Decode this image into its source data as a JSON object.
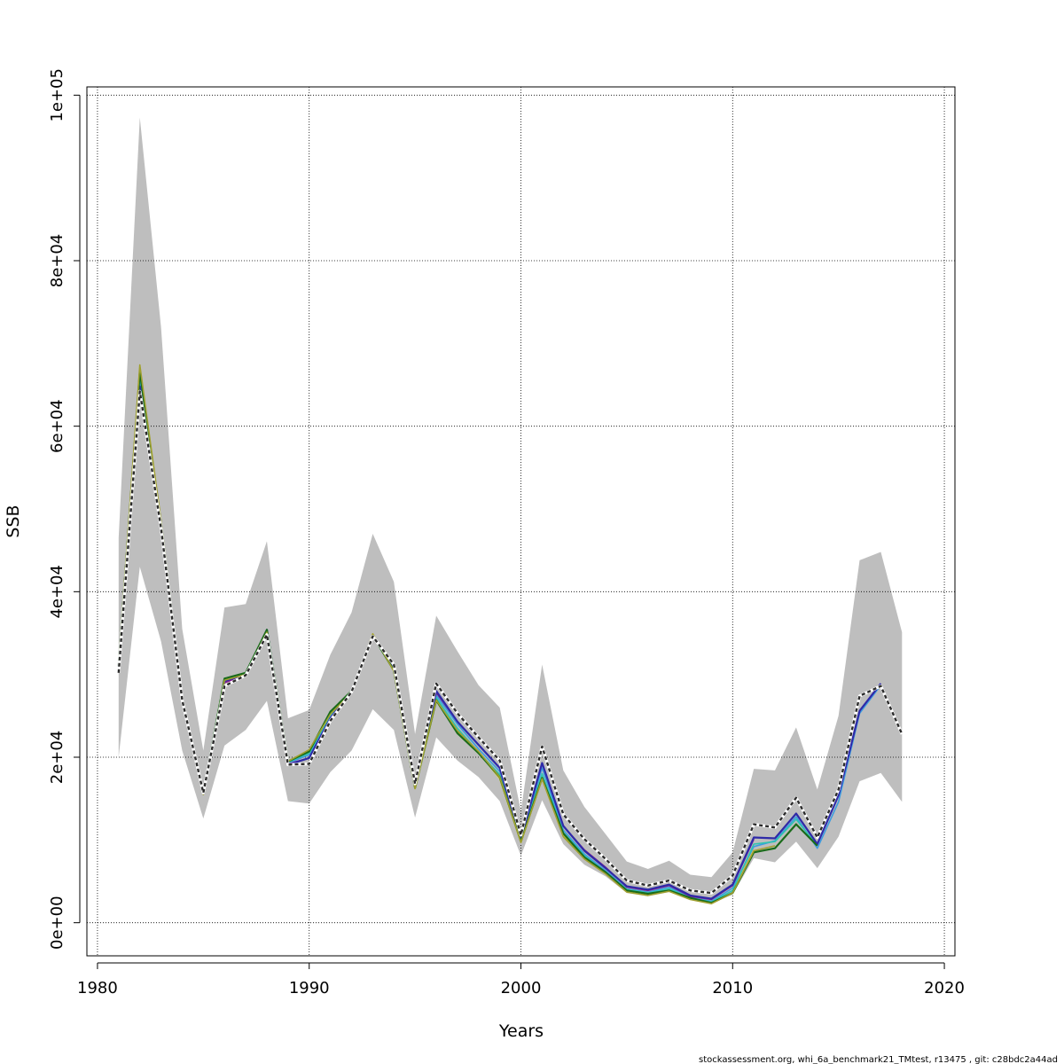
{
  "chart_data": {
    "type": "line",
    "xlabel": "Years",
    "ylabel": "SSB",
    "xlim": [
      1979.5,
      2020.5
    ],
    "ylim": [
      -4000,
      101000
    ],
    "x_ticks": [
      1980,
      1990,
      2000,
      2010,
      2020
    ],
    "x_tick_labels": [
      "1980",
      "1990",
      "2000",
      "2010",
      "2020"
    ],
    "y_ticks": [
      0,
      20000,
      40000,
      60000,
      80000,
      100000
    ],
    "y_tick_labels": [
      "0e+00",
      "2e+04",
      "4e+04",
      "6e+04",
      "8e+04",
      "1e+05"
    ],
    "grid": true,
    "band": {
      "color": "#bebebe",
      "x": [
        1981,
        1982,
        1983,
        1984,
        1985,
        1986,
        1987,
        1988,
        1989,
        1990,
        1991,
        1992,
        1993,
        1994,
        1995,
        1996,
        1997,
        1998,
        1999,
        2000,
        2001,
        2002,
        2003,
        2004,
        2005,
        2006,
        2007,
        2008,
        2009,
        2010,
        2011,
        2012,
        2013,
        2014,
        2015,
        2016,
        2017,
        2018
      ],
      "upper": [
        46500,
        97300,
        72000,
        35500,
        20800,
        38100,
        38500,
        46100,
        24700,
        25700,
        32400,
        37500,
        47000,
        41200,
        22800,
        37100,
        32800,
        28700,
        26000,
        13500,
        31200,
        18400,
        14000,
        10700,
        7400,
        6500,
        7500,
        5800,
        5500,
        8500,
        18600,
        18400,
        23600,
        16100,
        25000,
        43800,
        44800,
        35100
      ],
      "lower": [
        20000,
        43000,
        34000,
        20800,
        12600,
        21400,
        23300,
        26800,
        14700,
        14400,
        18200,
        20800,
        25800,
        23300,
        12700,
        22400,
        19600,
        17600,
        14700,
        8100,
        14800,
        9500,
        7000,
        5600,
        3600,
        3200,
        3700,
        2900,
        2400,
        3400,
        7800,
        7300,
        9800,
        6600,
        10400,
        17100,
        18100,
        14600
      ]
    },
    "x": [
      1981,
      1982,
      1983,
      1984,
      1985,
      1986,
      1987,
      1988,
      1989,
      1990,
      1991,
      1992,
      1993,
      1994,
      1995,
      1996,
      1997,
      1998,
      1999,
      2000,
      2001,
      2002,
      2003,
      2004,
      2005,
      2006,
      2007,
      2008,
      2009,
      2010,
      2011,
      2012,
      2013,
      2014,
      2015,
      2016,
      2017,
      2018
    ],
    "series": [
      {
        "color": "#3c9de0",
        "width": 1.6,
        "dashed": false,
        "values": [
          31000,
          65500,
          48000,
          27000,
          15800,
          29300,
          30000,
          35000,
          19300,
          20300,
          24800,
          28000,
          34700,
          30800,
          16500,
          27500,
          24000,
          21000,
          18300,
          10000,
          18700,
          11200,
          8300,
          6300,
          4100,
          3700,
          4300,
          3100,
          2600,
          4200,
          9200,
          9900,
          12800,
          9000,
          14600,
          25300,
          28700,
          null
        ]
      },
      {
        "color": "#2ec4b0",
        "width": 1.6,
        "dashed": false,
        "values": [
          31100,
          66200,
          48500,
          27200,
          15800,
          29400,
          30100,
          35200,
          19400,
          20500,
          25100,
          28000,
          34800,
          30600,
          16300,
          27200,
          23500,
          20600,
          17900,
          9900,
          18000,
          10900,
          8100,
          6100,
          4000,
          3600,
          4100,
          3000,
          2500,
          3900,
          9500,
          9800,
          12500,
          9300,
          null,
          null,
          null,
          null
        ]
      },
      {
        "color": "#8b1a8b",
        "width": 1.6,
        "dashed": false,
        "values": [
          30800,
          64800,
          47800,
          26900,
          15800,
          29000,
          29900,
          34900,
          19200,
          19900,
          24600,
          27900,
          34600,
          30900,
          16700,
          27800,
          24300,
          21500,
          18700,
          10200,
          19300,
          11700,
          8800,
          6700,
          4300,
          3900,
          4500,
          3200,
          2800,
          4500,
          10100,
          null,
          null,
          null,
          null,
          null,
          null,
          null
        ]
      },
      {
        "color": "#e0d040",
        "width": 1.6,
        "dashed": false,
        "values": [
          31000,
          66800,
          48400,
          27100,
          15600,
          29300,
          30000,
          35300,
          19500,
          20700,
          25300,
          27800,
          34900,
          30400,
          16200,
          26800,
          23100,
          20600,
          17400,
          9700,
          17400,
          10500,
          7800,
          6000,
          3800,
          3400,
          3900,
          2900,
          2400,
          3600,
          8800,
          null,
          null,
          null,
          null,
          null,
          null,
          null
        ]
      },
      {
        "color": "#2f2aa8",
        "width": 2.2,
        "dashed": false,
        "values": [
          30900,
          64800,
          47800,
          27000,
          15700,
          29200,
          30000,
          35400,
          19100,
          19900,
          24700,
          28000,
          34700,
          30900,
          16600,
          28000,
          24300,
          21500,
          18700,
          10200,
          19300,
          11700,
          8700,
          6600,
          4400,
          4000,
          4600,
          3300,
          2900,
          4600,
          10300,
          10200,
          13200,
          9500,
          15400,
          25600,
          28900,
          null
        ]
      },
      {
        "color": "#1a6b1a",
        "width": 2.2,
        "dashed": false,
        "values": [
          31000,
          66600,
          48200,
          27100,
          15700,
          29500,
          30200,
          35400,
          19500,
          20700,
          25500,
          28000,
          34700,
          30500,
          16300,
          26900,
          22900,
          20500,
          17600,
          9800,
          17500,
          10800,
          7900,
          6100,
          3900,
          3500,
          3900,
          3000,
          2400,
          3600,
          8500,
          9000,
          11900,
          9300,
          null,
          null,
          null,
          null
        ]
      },
      {
        "color": "#a0a030",
        "width": 1.6,
        "dashed": false,
        "values": [
          31200,
          67400,
          48600,
          27100,
          15500,
          29300,
          30000,
          35100,
          19500,
          20900,
          25200,
          27800,
          34900,
          30400,
          16200,
          26900,
          23200,
          20700,
          17600,
          9700,
          17400,
          10400,
          7700,
          5900,
          3700,
          3300,
          3800,
          2800,
          2300,
          3600,
          8700,
          9300,
          null,
          null,
          null,
          null,
          null,
          null
        ]
      },
      {
        "color": "#2b2b2b",
        "width": 2.4,
        "dashed": true,
        "values": [
          30200,
          64200,
          47700,
          26900,
          15700,
          28600,
          29900,
          34800,
          19100,
          19200,
          24400,
          27900,
          34600,
          31200,
          16800,
          28900,
          25300,
          22400,
          19600,
          10600,
          21300,
          13100,
          10100,
          7700,
          5100,
          4500,
          5100,
          3900,
          3600,
          5700,
          11900,
          11500,
          15100,
          10300,
          16100,
          27400,
          28600,
          22800
        ]
      }
    ]
  },
  "footer_text": "stockassessment.org, whi_6a_benchmark21_TMtest, r13475 , git: c28bdc2a44ad"
}
